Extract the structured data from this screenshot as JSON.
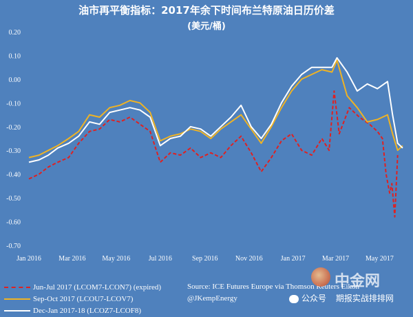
{
  "title": "油市再平衡指标：2017年余下时间布兰特原油日历价差",
  "subtitle": "(美元/桶)",
  "source_lines": [
    "Source: ICE Futures Europe via Thomson Reuters Eikon",
    "@JKempEnergy"
  ],
  "watermark": {
    "brand": "中金网",
    "wechat_label": "公众号",
    "wechat_name": "期报实战排排网"
  },
  "colors": {
    "background": "#4f81bd",
    "series_red": "#e02020",
    "series_orange": "#f0b323",
    "series_white": "#ffffff"
  },
  "chart_data": {
    "type": "line",
    "title": "油市再平衡指标：2017年余下时间布兰特原油日历价差",
    "subtitle": "(美元/桶)",
    "xlabel": "",
    "ylabel": "",
    "x_tick_labels": [
      "Jan 2016",
      "Mar 2016",
      "May 2016",
      "Jul 2016",
      "Sep 2016",
      "Nov 2016",
      "Jan 2017",
      "Mar 2017",
      "May 2017"
    ],
    "y_tick_labels": [
      "0.20",
      "0.10",
      "0.00",
      "-0.10",
      "-0.20",
      "-0.30",
      "-0.40",
      "-0.50",
      "-0.60",
      "-0.70"
    ],
    "ylim": [
      -0.7,
      0.2
    ],
    "grid": false,
    "legend_position": "bottom-left",
    "series": [
      {
        "name": "Jun-Jul 2017 (LCOM7-LCON7) (expired)",
        "style": "dashed",
        "color": "#e02020",
        "x": [
          "2016-01-01",
          "2016-01-15",
          "2016-01-28",
          "2016-02-10",
          "2016-02-25",
          "2016-03-10",
          "2016-03-25",
          "2016-04-08",
          "2016-04-22",
          "2016-05-06",
          "2016-05-20",
          "2016-06-03",
          "2016-06-17",
          "2016-07-01",
          "2016-07-15",
          "2016-07-29",
          "2016-08-12",
          "2016-08-26",
          "2016-09-09",
          "2016-09-23",
          "2016-10-07",
          "2016-10-21",
          "2016-11-04",
          "2016-11-18",
          "2016-12-02",
          "2016-12-16",
          "2016-12-30",
          "2017-01-13",
          "2017-01-27",
          "2017-02-10",
          "2017-02-20",
          "2017-02-27",
          "2017-03-06",
          "2017-03-20",
          "2017-04-03",
          "2017-04-17",
          "2017-04-28",
          "2017-05-05",
          "2017-05-10",
          "2017-05-15",
          "2017-05-18",
          "2017-05-22",
          "2017-05-26"
        ],
        "values": [
          -0.42,
          -0.4,
          -0.37,
          -0.35,
          -0.33,
          -0.27,
          -0.22,
          -0.21,
          -0.17,
          -0.18,
          -0.16,
          -0.19,
          -0.22,
          -0.35,
          -0.31,
          -0.32,
          -0.29,
          -0.33,
          -0.31,
          -0.33,
          -0.28,
          -0.24,
          -0.31,
          -0.39,
          -0.33,
          -0.26,
          -0.23,
          -0.3,
          -0.32,
          -0.25,
          -0.3,
          -0.05,
          -0.23,
          -0.12,
          -0.16,
          -0.19,
          -0.22,
          -0.25,
          -0.4,
          -0.48,
          -0.44,
          -0.58,
          -0.32
        ]
      },
      {
        "name": "Sep-Oct 2017 (LCOU7-LCOV7)",
        "style": "solid",
        "color": "#f0b323",
        "x": [
          "2016-01-01",
          "2016-01-15",
          "2016-01-28",
          "2016-02-10",
          "2016-02-25",
          "2016-03-10",
          "2016-03-25",
          "2016-04-08",
          "2016-04-22",
          "2016-05-06",
          "2016-05-20",
          "2016-06-03",
          "2016-06-17",
          "2016-07-01",
          "2016-07-15",
          "2016-07-29",
          "2016-08-12",
          "2016-08-26",
          "2016-09-09",
          "2016-09-23",
          "2016-10-07",
          "2016-10-21",
          "2016-11-04",
          "2016-11-18",
          "2016-12-02",
          "2016-12-16",
          "2016-12-30",
          "2017-01-13",
          "2017-01-27",
          "2017-02-10",
          "2017-02-24",
          "2017-03-03",
          "2017-03-17",
          "2017-03-31",
          "2017-04-14",
          "2017-04-28",
          "2017-05-12",
          "2017-05-19",
          "2017-05-26",
          "2017-06-02"
        ],
        "values": [
          -0.33,
          -0.32,
          -0.3,
          -0.28,
          -0.25,
          -0.22,
          -0.15,
          -0.16,
          -0.12,
          -0.11,
          -0.09,
          -0.1,
          -0.14,
          -0.26,
          -0.24,
          -0.23,
          -0.21,
          -0.22,
          -0.25,
          -0.21,
          -0.18,
          -0.15,
          -0.21,
          -0.27,
          -0.2,
          -0.12,
          -0.05,
          0.0,
          0.02,
          0.04,
          0.03,
          0.08,
          -0.07,
          -0.12,
          -0.18,
          -0.17,
          -0.15,
          -0.23,
          -0.3,
          -0.28
        ]
      },
      {
        "name": "Dec-Jan 2017-18 (LCOZ7-LCOF8)",
        "style": "solid",
        "color": "#ffffff",
        "x": [
          "2016-01-01",
          "2016-01-15",
          "2016-01-28",
          "2016-02-10",
          "2016-02-25",
          "2016-03-10",
          "2016-03-25",
          "2016-04-08",
          "2016-04-22",
          "2016-05-06",
          "2016-05-20",
          "2016-06-03",
          "2016-06-17",
          "2016-07-01",
          "2016-07-15",
          "2016-07-29",
          "2016-08-12",
          "2016-08-26",
          "2016-09-09",
          "2016-09-23",
          "2016-10-07",
          "2016-10-21",
          "2016-11-04",
          "2016-11-18",
          "2016-12-02",
          "2016-12-16",
          "2016-12-30",
          "2017-01-13",
          "2017-01-27",
          "2017-02-10",
          "2017-02-24",
          "2017-03-03",
          "2017-03-17",
          "2017-03-31",
          "2017-04-14",
          "2017-04-28",
          "2017-05-12",
          "2017-05-19",
          "2017-05-26",
          "2017-06-02"
        ],
        "values": [
          -0.35,
          -0.34,
          -0.32,
          -0.29,
          -0.27,
          -0.24,
          -0.18,
          -0.19,
          -0.14,
          -0.13,
          -0.12,
          -0.13,
          -0.16,
          -0.28,
          -0.25,
          -0.24,
          -0.2,
          -0.21,
          -0.24,
          -0.2,
          -0.16,
          -0.11,
          -0.2,
          -0.25,
          -0.19,
          -0.1,
          -0.03,
          0.02,
          0.05,
          0.05,
          0.05,
          0.09,
          0.03,
          -0.05,
          -0.02,
          -0.04,
          -0.01,
          -0.15,
          -0.27,
          -0.29
        ]
      }
    ]
  }
}
